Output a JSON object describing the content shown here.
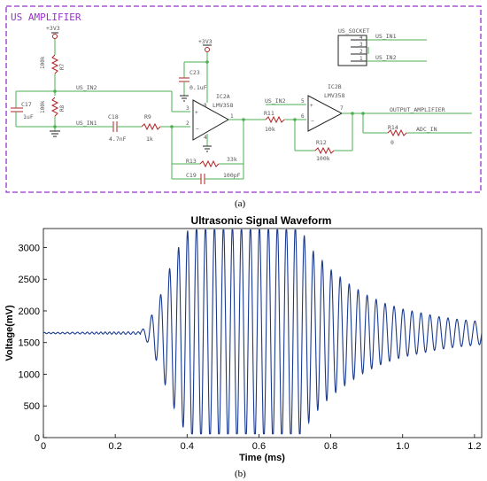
{
  "schematic": {
    "title": "US AMPLIFIER",
    "caption": "(a)",
    "colors": {
      "frame": "#9932cc",
      "wire": "#4caf50",
      "component": "#b22222",
      "text": "#555555"
    },
    "power_top_left": "+3V3",
    "power_op_amp": "+3V3",
    "R7": {
      "value": "100k",
      "name": "R7"
    },
    "R8": {
      "value": "100k",
      "name": "R8"
    },
    "C17": {
      "name": "C17",
      "value": "1uF"
    },
    "C18": {
      "name": "C18",
      "value": "4.7nF"
    },
    "R9": {
      "name": "R9",
      "value": "1k"
    },
    "C23": {
      "name": "C23",
      "value": "0.1uF"
    },
    "IC2A": {
      "name": "IC2A",
      "part": "LMV358",
      "pin_out": "1",
      "pin_in_plus": "3",
      "pin_in_minus": "2",
      "pin_vcc": "8",
      "pin_gnd": "4"
    },
    "IC2B": {
      "name": "IC2B",
      "part": "LMV358",
      "pin_out": "7",
      "pin_in_plus": "5",
      "pin_in_minus": "6"
    },
    "R13": {
      "name": "R13",
      "value": "33k"
    },
    "C19": {
      "name": "C19",
      "value": "100pF"
    },
    "R11": {
      "name": "R11",
      "value": "10k"
    },
    "R12": {
      "name": "R12",
      "value": "100k"
    },
    "R14": {
      "name": "R14",
      "value": "0"
    },
    "net_us_in2_left": "US_IN2",
    "net_us_in1_left": "US_IN1",
    "net_us_in2_mid": "US_IN2",
    "net_output": "OUTPUT_AMPLIFIER",
    "net_adc": "ADC_IN",
    "socket": {
      "name": "US_SOCKET",
      "pins": [
        "4",
        "3",
        "2",
        "1"
      ],
      "net_in1": "US_IN1",
      "net_in2": "US_IN2"
    }
  },
  "chart_caption": "(b)",
  "chart_data": {
    "type": "line",
    "title": "Ultrasonic Signal Waveform",
    "xlabel": "Time (ms)",
    "ylabel": "Voltage(mV)",
    "xlim": [
      0,
      1.22
    ],
    "ylim": [
      0,
      3300
    ],
    "xticks": [
      0,
      0.2,
      0.4,
      0.6,
      0.8,
      1.0,
      1.2
    ],
    "xtick_labels": [
      "0",
      "0.2",
      "0.4",
      "0.6",
      "0.8",
      "1.0",
      "1.2"
    ],
    "yticks": [
      0,
      500,
      1000,
      1500,
      2000,
      2500,
      3000
    ],
    "ytick_labels": [
      "0",
      "500",
      "1000",
      "1500",
      "2000",
      "2500",
      "3000"
    ],
    "grid": false,
    "line_color": "#1a3a8f",
    "series": [
      {
        "baseline": 1650,
        "burst_start": 0.27,
        "saturation_start": 0.41,
        "saturation_end": 0.71,
        "period": 0.025,
        "max_clip": 3280,
        "min_clip": 60,
        "envelope": {
          "x": [
            0,
            0.27,
            0.29,
            0.32,
            0.35,
            0.38,
            0.41,
            0.71,
            0.75,
            0.8,
            0.85,
            0.9,
            0.95,
            1.0,
            1.05,
            1.1,
            1.15,
            1.22
          ],
          "amplitude": [
            10,
            20,
            150,
            500,
            1000,
            1400,
            1700,
            1700,
            1300,
            1000,
            780,
            600,
            470,
            380,
            320,
            260,
            220,
            180
          ]
        }
      }
    ]
  }
}
